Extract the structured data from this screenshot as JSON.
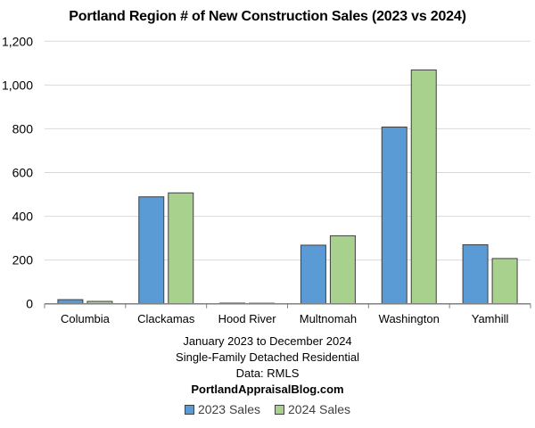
{
  "chart_data": {
    "type": "bar",
    "title": "Portland Region # of New Construction Sales (2023 vs 2024)",
    "xlabel": "",
    "ylabel": "",
    "categories": [
      "Columbia",
      "Clackamas",
      "Hood River",
      "Multnomah",
      "Washington",
      "Yamhill"
    ],
    "series": [
      {
        "name": "2023 Sales",
        "color": "#5B9BD5",
        "values": [
          19,
          489,
          3,
          268,
          808,
          270
        ]
      },
      {
        "name": "2024 Sales",
        "color": "#A9D18E",
        "values": [
          11,
          507,
          1,
          311,
          1069,
          207
        ]
      }
    ],
    "ylim": [
      0,
      1200
    ],
    "yticks": [
      0,
      200,
      400,
      600,
      800,
      1000,
      1200
    ],
    "ytick_labels": [
      "0",
      "200",
      "400",
      "600",
      "800",
      "1,000",
      "1,200"
    ],
    "grid": true,
    "legend_position": "bottom",
    "annotations": [
      "January 2023 to December 2024",
      "Single-Family Detached Residential",
      "Data: RMLS",
      "PortlandAppraisalBlog.com"
    ]
  },
  "notes": {
    "line1": "January 2023 to December 2024",
    "line2": "Single-Family Detached Residential",
    "line3": "Data: RMLS",
    "line4": "PortlandAppraisalBlog.com"
  },
  "legend": {
    "item1": "2023 Sales",
    "item2": "2024 Sales"
  }
}
